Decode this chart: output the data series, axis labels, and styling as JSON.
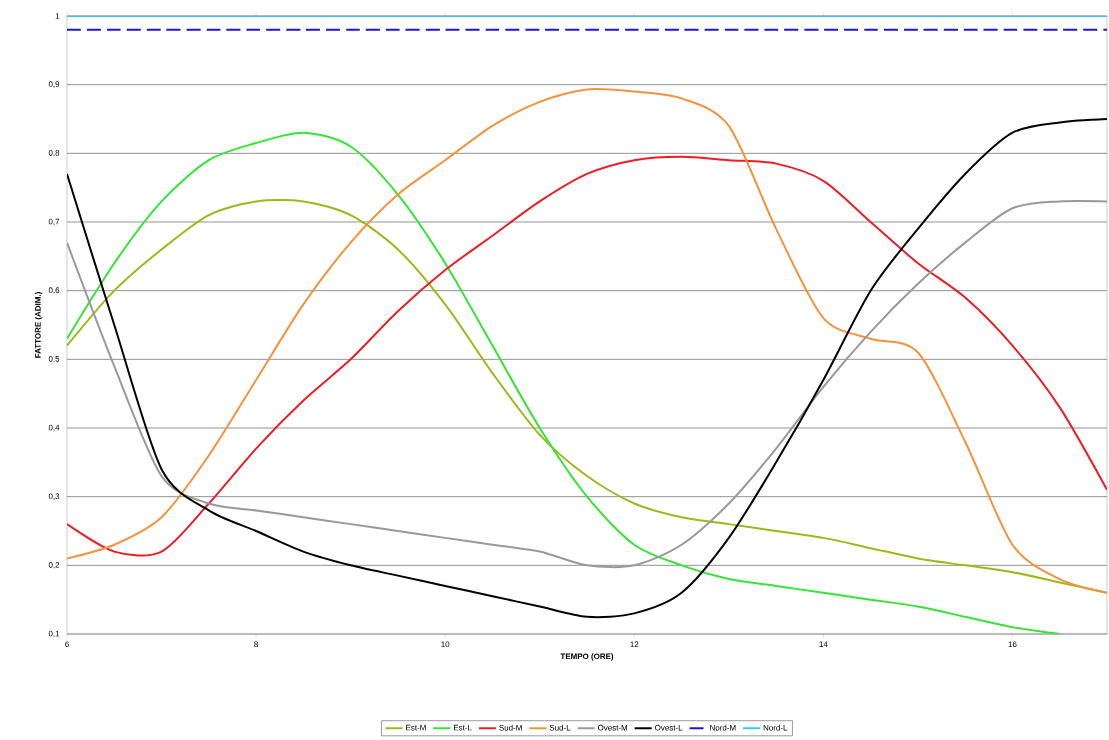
{
  "chart_data": {
    "type": "line",
    "xlabel": "TEMPO (ORE)",
    "ylabel": "FATTORE (ADIM.)",
    "x": [
      6,
      6.5,
      7,
      7.5,
      8,
      8.5,
      9,
      9.5,
      10,
      10.5,
      11,
      11.5,
      12,
      12.5,
      13,
      13.5,
      14,
      14.5,
      15,
      15.5,
      16,
      16.5,
      17
    ],
    "series": [
      {
        "name": "Est-M",
        "color": "#9aba1a",
        "values": [
          0.52,
          0.6,
          0.66,
          0.71,
          0.73,
          0.73,
          0.71,
          0.66,
          0.58,
          0.48,
          0.39,
          0.33,
          0.29,
          0.27,
          0.26,
          0.25,
          0.24,
          0.225,
          0.21,
          0.2,
          0.19,
          0.175,
          0.16
        ]
      },
      {
        "name": "Est-L",
        "color": "#33e633",
        "values": [
          0.53,
          0.64,
          0.73,
          0.79,
          0.815,
          0.83,
          0.81,
          0.74,
          0.64,
          0.52,
          0.4,
          0.3,
          0.23,
          0.2,
          0.18,
          0.17,
          0.16,
          0.15,
          0.14,
          0.125,
          0.11,
          0.1,
          null
        ]
      },
      {
        "name": "Sud-M",
        "color": "#ee1c24",
        "values": [
          0.26,
          0.22,
          0.22,
          0.29,
          0.37,
          0.44,
          0.5,
          0.57,
          0.63,
          0.68,
          0.73,
          0.77,
          0.79,
          0.795,
          0.79,
          0.785,
          0.76,
          0.7,
          0.64,
          0.59,
          0.52,
          0.43,
          0.31
        ]
      },
      {
        "name": "Sud-L",
        "color": "#f7923a",
        "values": [
          0.21,
          0.23,
          0.27,
          0.36,
          0.47,
          0.58,
          0.67,
          0.74,
          0.79,
          0.84,
          0.875,
          0.893,
          0.89,
          0.88,
          0.84,
          0.69,
          0.56,
          0.53,
          0.51,
          0.38,
          0.23,
          0.18,
          0.16
        ]
      },
      {
        "name": "Ovest-M",
        "color": "#999999",
        "values": [
          0.67,
          0.49,
          0.33,
          0.29,
          0.28,
          0.27,
          0.26,
          0.25,
          0.24,
          0.23,
          0.22,
          0.2,
          0.2,
          0.23,
          0.29,
          0.37,
          0.46,
          0.54,
          0.61,
          0.67,
          0.72,
          0.73,
          0.73
        ]
      },
      {
        "name": "Ovest-L",
        "color": "#000000",
        "values": [
          0.77,
          0.55,
          0.34,
          0.28,
          0.25,
          0.22,
          0.2,
          0.185,
          0.17,
          0.155,
          0.14,
          0.125,
          0.13,
          0.16,
          0.24,
          0.35,
          0.47,
          0.6,
          0.69,
          0.77,
          0.83,
          0.845,
          0.85
        ]
      },
      {
        "name": "Nord-M",
        "color": "#1a1acc",
        "line_style": "dashed",
        "values": [
          0.98,
          0.98,
          0.98,
          0.98,
          0.98,
          0.98,
          0.98,
          0.98,
          0.98,
          0.98,
          0.98,
          0.98,
          0.98,
          0.98,
          0.98,
          0.98,
          0.98,
          0.98,
          0.98,
          0.98,
          0.98,
          0.98,
          0.98
        ]
      },
      {
        "name": "Nord-L",
        "color": "#33ccee",
        "values": [
          1,
          1,
          1,
          1,
          1,
          1,
          1,
          1,
          1,
          1,
          1,
          1,
          1,
          1,
          1,
          1,
          1,
          1,
          1,
          1,
          1,
          1,
          1
        ]
      }
    ],
    "xlim": [
      6,
      17
    ],
    "ylim": [
      0.1,
      1
    ],
    "xticks": [
      6,
      8,
      10,
      12,
      14,
      16
    ],
    "yticks": [
      {
        "value": 0.1,
        "label": "0,1"
      },
      {
        "value": 0.2,
        "label": "0,2"
      },
      {
        "value": 0.3,
        "label": "0,3"
      },
      {
        "value": 0.4,
        "label": "0,4"
      },
      {
        "value": 0.5,
        "label": "0,5"
      },
      {
        "value": 0.6,
        "label": "0,6"
      },
      {
        "value": 0.7,
        "label": "0,7"
      },
      {
        "value": 0.8,
        "label": "0,8"
      },
      {
        "value": 0.9,
        "label": "0,9"
      },
      1
    ],
    "grid": "y",
    "legend": "bottom",
    "marker": "none",
    "line_style": "solid"
  }
}
